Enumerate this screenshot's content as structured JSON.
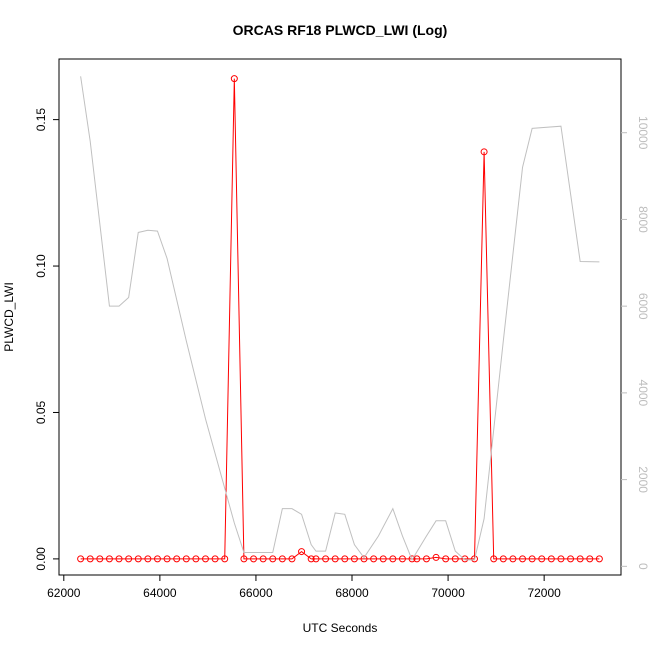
{
  "chart_data": {
    "type": "line",
    "title": "ORCAS RF18 PLWCD_LWI (Log)",
    "xlabel": "UTC Seconds",
    "ylabel": "PLWCD_LWI",
    "ylabel_right": "",
    "xlim": [
      61900,
      73600
    ],
    "ylim": [
      -0.0055,
      0.1707
    ],
    "ylim_right": [
      -200,
      11700
    ],
    "x_ticks": [
      62000,
      64000,
      66000,
      68000,
      70000,
      72000
    ],
    "y_ticks": [
      0.0,
      0.05,
      0.1,
      0.15
    ],
    "y_ticks_right": [
      0,
      2000,
      4000,
      6000,
      8000,
      10000
    ],
    "grid": false,
    "series": [
      {
        "axis": "left",
        "style": "points+line",
        "color": "#ff0000",
        "points": [
          [
            62350,
            0
          ],
          [
            62550,
            0
          ],
          [
            62750,
            0
          ],
          [
            62950,
            0
          ],
          [
            63150,
            0
          ],
          [
            63350,
            0
          ],
          [
            63550,
            0
          ],
          [
            63750,
            0
          ],
          [
            63950,
            0
          ],
          [
            64150,
            0
          ],
          [
            64350,
            0
          ],
          [
            64550,
            0
          ],
          [
            64750,
            0
          ],
          [
            64950,
            0
          ],
          [
            65150,
            0
          ],
          [
            65350,
            0
          ],
          [
            65550,
            0.164
          ],
          [
            65750,
            0
          ],
          [
            65950,
            0
          ],
          [
            66150,
            0
          ],
          [
            66350,
            0
          ],
          [
            66550,
            0
          ],
          [
            66750,
            0
          ],
          [
            66950,
            0.0025
          ],
          [
            67150,
            0
          ],
          [
            67250,
            0
          ],
          [
            67450,
            0
          ],
          [
            67650,
            0
          ],
          [
            67850,
            0
          ],
          [
            68050,
            0
          ],
          [
            68250,
            0
          ],
          [
            68450,
            0
          ],
          [
            68650,
            0
          ],
          [
            68850,
            0
          ],
          [
            69050,
            0
          ],
          [
            69250,
            0
          ],
          [
            69350,
            0
          ],
          [
            69550,
            0
          ],
          [
            69750,
            0.0005
          ],
          [
            69950,
            0
          ],
          [
            70150,
            0
          ],
          [
            70350,
            0
          ],
          [
            70550,
            0
          ],
          [
            70750,
            0.139
          ],
          [
            70950,
            0
          ],
          [
            71150,
            0
          ],
          [
            71350,
            0
          ],
          [
            71550,
            0
          ],
          [
            71750,
            0
          ],
          [
            71950,
            0
          ],
          [
            72150,
            0
          ],
          [
            72350,
            0
          ],
          [
            72550,
            0
          ],
          [
            72750,
            0
          ],
          [
            72950,
            0
          ],
          [
            73150,
            0
          ]
        ]
      },
      {
        "axis": "right",
        "style": "line",
        "color": "#c0c0c0",
        "points": [
          [
            62350,
            11300
          ],
          [
            62550,
            9800
          ],
          [
            62950,
            6000
          ],
          [
            63150,
            6000
          ],
          [
            63350,
            6200
          ],
          [
            63550,
            7700
          ],
          [
            63750,
            7750
          ],
          [
            63950,
            7730
          ],
          [
            64150,
            7100
          ],
          [
            64550,
            5200
          ],
          [
            64950,
            3400
          ],
          [
            65350,
            1800
          ],
          [
            65550,
            1000
          ],
          [
            65750,
            320
          ],
          [
            66350,
            320
          ],
          [
            66550,
            1330
          ],
          [
            66750,
            1330
          ],
          [
            66950,
            1200
          ],
          [
            67150,
            500
          ],
          [
            67250,
            350
          ],
          [
            67450,
            350
          ],
          [
            67650,
            1230
          ],
          [
            67850,
            1200
          ],
          [
            68050,
            500
          ],
          [
            68250,
            200
          ],
          [
            68550,
            700
          ],
          [
            68850,
            1330
          ],
          [
            69050,
            700
          ],
          [
            69250,
            150
          ],
          [
            69550,
            700
          ],
          [
            69750,
            1050
          ],
          [
            69950,
            1050
          ],
          [
            70150,
            350
          ],
          [
            70350,
            150
          ],
          [
            70550,
            150
          ],
          [
            70750,
            1100
          ],
          [
            71150,
            5200
          ],
          [
            71550,
            9200
          ],
          [
            71750,
            10100
          ],
          [
            72350,
            10150
          ],
          [
            72750,
            7030
          ],
          [
            73150,
            7020
          ]
        ]
      }
    ]
  }
}
